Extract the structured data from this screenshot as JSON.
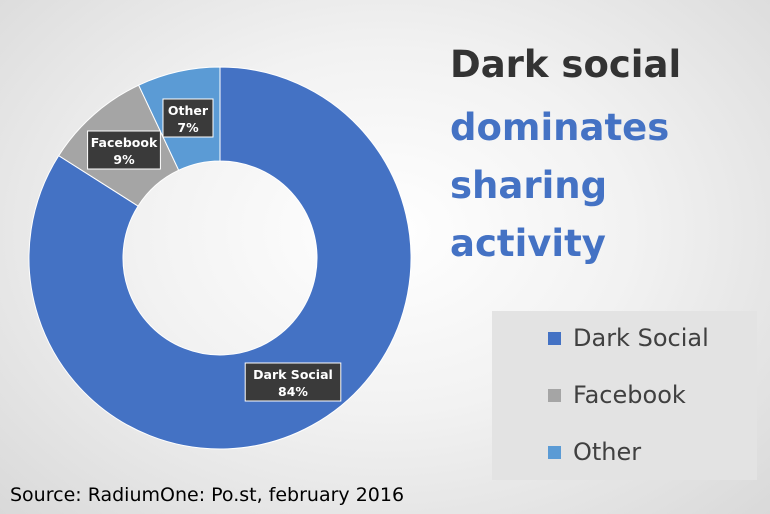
{
  "title": {
    "line1": "Dark social",
    "line2": "dominates",
    "line3": "sharing",
    "line4": "activity"
  },
  "colors": {
    "title_dark": "#333333",
    "accent": "#4472c4"
  },
  "source": "Source: RadiumOne: Po.st, february 2016",
  "chart_data": {
    "type": "pie",
    "variant": "donut",
    "title": "",
    "categories": [
      "Dark Social",
      "Facebook",
      "Other"
    ],
    "values": [
      84,
      9,
      7
    ],
    "value_labels": [
      "84%",
      "9%",
      "7%"
    ],
    "colors": [
      "#4472c4",
      "#a5a5a5",
      "#5b9bd5"
    ],
    "legend": {
      "position": "bottom-right",
      "items": [
        {
          "label": "Dark Social",
          "color": "#4472c4"
        },
        {
          "label": "Facebook",
          "color": "#a5a5a5"
        },
        {
          "label": "Other",
          "color": "#5b9bd5"
        }
      ]
    }
  }
}
